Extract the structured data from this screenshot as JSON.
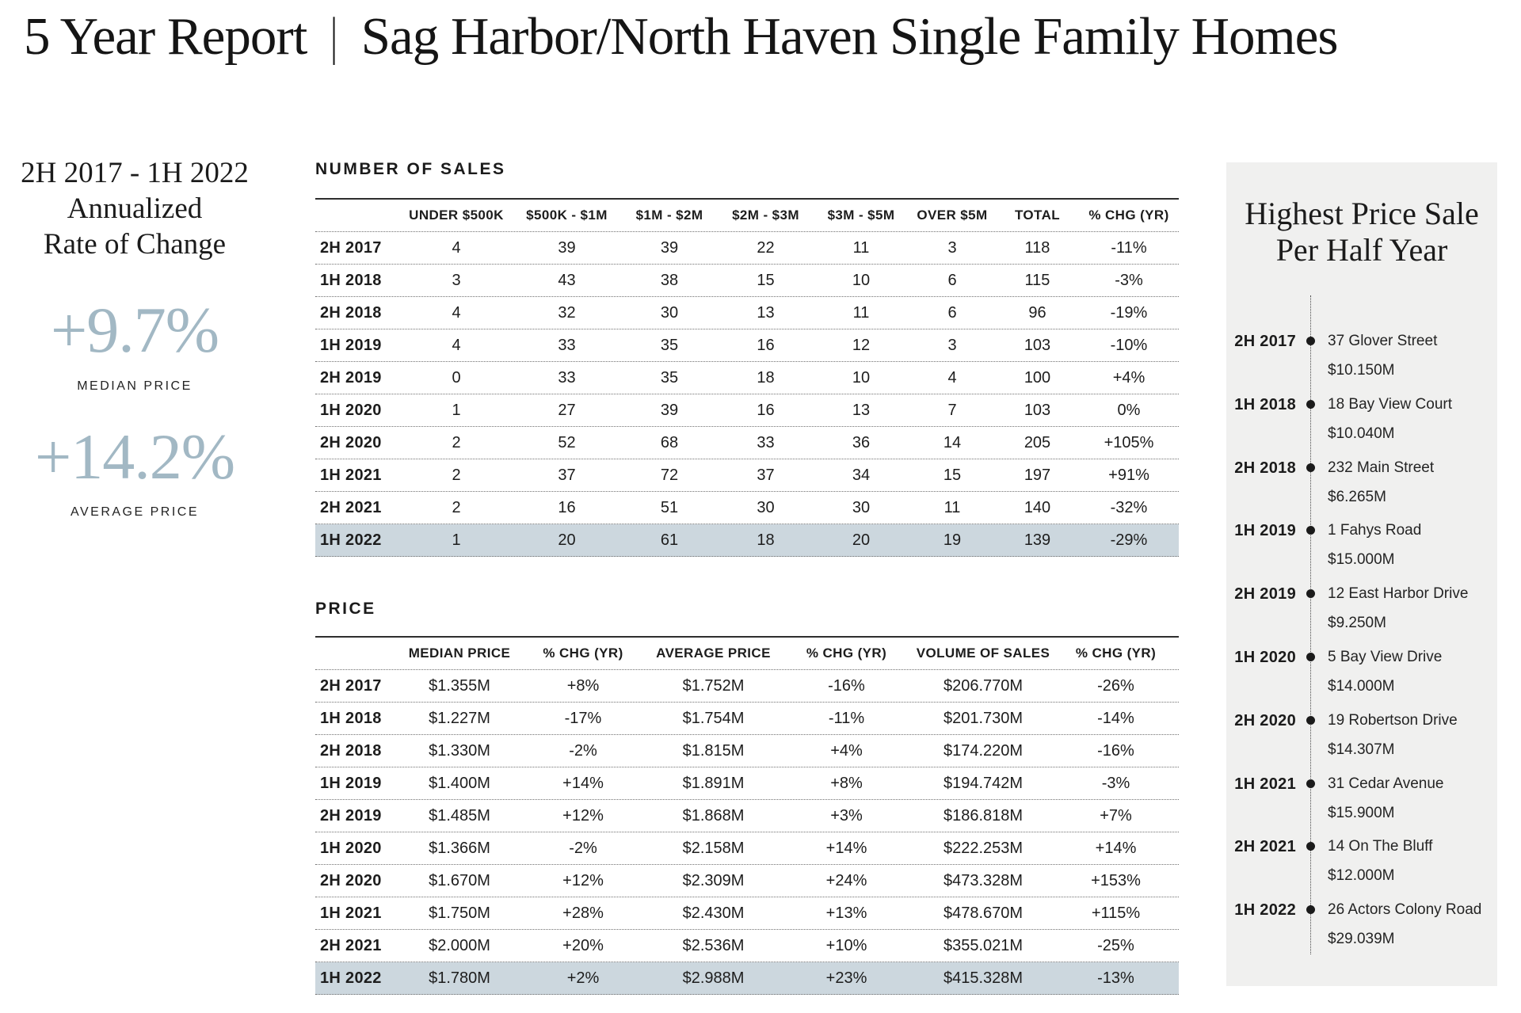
{
  "title": {
    "left": "5 Year Report",
    "separator": "|",
    "right": "Sag Harbor/North Haven Single Family Homes"
  },
  "summary": {
    "heading_lines": [
      "2H 2017 - 1H 2022",
      "Annualized",
      "Rate of Change"
    ],
    "stats": [
      {
        "value": "+9.7%",
        "label": "MEDIAN PRICE"
      },
      {
        "value": "+14.2%",
        "label": "AVERAGE PRICE"
      }
    ]
  },
  "sales_table": {
    "title": "NUMBER OF SALES",
    "columns": [
      "",
      "UNDER $500K",
      "$500K - $1M",
      "$1M - $2M",
      "$2M - $3M",
      "$3M - $5M",
      "OVER $5M",
      "TOTAL",
      "% CHG (YR)"
    ],
    "rows": [
      {
        "label": "2H 2017",
        "values": [
          "4",
          "39",
          "39",
          "22",
          "11",
          "3",
          "118",
          "-11%"
        ],
        "highlight": false
      },
      {
        "label": "1H 2018",
        "values": [
          "3",
          "43",
          "38",
          "15",
          "10",
          "6",
          "115",
          "-3%"
        ],
        "highlight": false
      },
      {
        "label": "2H 2018",
        "values": [
          "4",
          "32",
          "30",
          "13",
          "11",
          "6",
          "96",
          "-19%"
        ],
        "highlight": false
      },
      {
        "label": "1H 2019",
        "values": [
          "4",
          "33",
          "35",
          "16",
          "12",
          "3",
          "103",
          "-10%"
        ],
        "highlight": false
      },
      {
        "label": "2H 2019",
        "values": [
          "0",
          "33",
          "35",
          "18",
          "10",
          "4",
          "100",
          "+4%"
        ],
        "highlight": false
      },
      {
        "label": "1H 2020",
        "values": [
          "1",
          "27",
          "39",
          "16",
          "13",
          "7",
          "103",
          "0%"
        ],
        "highlight": false
      },
      {
        "label": "2H 2020",
        "values": [
          "2",
          "52",
          "68",
          "33",
          "36",
          "14",
          "205",
          "+105%"
        ],
        "highlight": false
      },
      {
        "label": "1H 2021",
        "values": [
          "2",
          "37",
          "72",
          "37",
          "34",
          "15",
          "197",
          "+91%"
        ],
        "highlight": false
      },
      {
        "label": "2H 2021",
        "values": [
          "2",
          "16",
          "51",
          "30",
          "30",
          "11",
          "140",
          "-32%"
        ],
        "highlight": false
      },
      {
        "label": "1H 2022",
        "values": [
          "1",
          "20",
          "61",
          "18",
          "20",
          "19",
          "139",
          "-29%"
        ],
        "highlight": true
      }
    ]
  },
  "price_table": {
    "title": "PRICE",
    "columns": [
      "",
      "MEDIAN PRICE",
      "% CHG (YR)",
      "AVERAGE PRICE",
      "% CHG (YR)",
      "VOLUME OF SALES",
      "% CHG (YR)"
    ],
    "rows": [
      {
        "label": "2H 2017",
        "values": [
          "$1.355M",
          "+8%",
          "$1.752M",
          "-16%",
          "$206.770M",
          "-26%"
        ],
        "highlight": false
      },
      {
        "label": "1H 2018",
        "values": [
          "$1.227M",
          "-17%",
          "$1.754M",
          "-11%",
          "$201.730M",
          "-14%"
        ],
        "highlight": false
      },
      {
        "label": "2H 2018",
        "values": [
          "$1.330M",
          "-2%",
          "$1.815M",
          "+4%",
          "$174.220M",
          "-16%"
        ],
        "highlight": false
      },
      {
        "label": "1H 2019",
        "values": [
          "$1.400M",
          "+14%",
          "$1.891M",
          "+8%",
          "$194.742M",
          "-3%"
        ],
        "highlight": false
      },
      {
        "label": "2H 2019",
        "values": [
          "$1.485M",
          "+12%",
          "$1.868M",
          "+3%",
          "$186.818M",
          "+7%"
        ],
        "highlight": false
      },
      {
        "label": "1H 2020",
        "values": [
          "$1.366M",
          "-2%",
          "$2.158M",
          "+14%",
          "$222.253M",
          "+14%"
        ],
        "highlight": false
      },
      {
        "label": "2H 2020",
        "values": [
          "$1.670M",
          "+12%",
          "$2.309M",
          "+24%",
          "$473.328M",
          "+153%"
        ],
        "highlight": false
      },
      {
        "label": "1H 2021",
        "values": [
          "$1.750M",
          "+28%",
          "$2.430M",
          "+13%",
          "$478.670M",
          "+115%"
        ],
        "highlight": false
      },
      {
        "label": "2H 2021",
        "values": [
          "$2.000M",
          "+20%",
          "$2.536M",
          "+10%",
          "$355.021M",
          "-25%"
        ],
        "highlight": false
      },
      {
        "label": "1H 2022",
        "values": [
          "$1.780M",
          "+2%",
          "$2.988M",
          "+23%",
          "$415.328M",
          "-13%"
        ],
        "highlight": true
      }
    ]
  },
  "timeline": {
    "title_lines": [
      "Highest Price Sale",
      "Per Half Year"
    ],
    "entries": [
      {
        "period": "2H 2017",
        "address": "37 Glover Street",
        "price": "$10.150M"
      },
      {
        "period": "1H 2018",
        "address": "18 Bay View Court",
        "price": "$10.040M"
      },
      {
        "period": "2H 2018",
        "address": "232 Main Street",
        "price": "$6.265M"
      },
      {
        "period": "1H 2019",
        "address": "1 Fahys Road",
        "price": "$15.000M"
      },
      {
        "period": "2H 2019",
        "address": "12 East Harbor Drive",
        "price": "$9.250M"
      },
      {
        "period": "1H 2020",
        "address": "5 Bay View Drive",
        "price": "$14.000M"
      },
      {
        "period": "2H 2020",
        "address": "19 Robertson Drive",
        "price": "$14.307M"
      },
      {
        "period": "1H 2021",
        "address": "31 Cedar Avenue",
        "price": "$15.900M"
      },
      {
        "period": "2H 2021",
        "address": "14 On The Bluff",
        "price": "$12.000M"
      },
      {
        "period": "1H 2022",
        "address": "26 Actors Colony Road",
        "price": "$29.039M"
      }
    ]
  },
  "colors": {
    "accent": "#a2b8c4",
    "highlight_row": "#ccd7de",
    "panel_background": "#f0f0ef"
  }
}
